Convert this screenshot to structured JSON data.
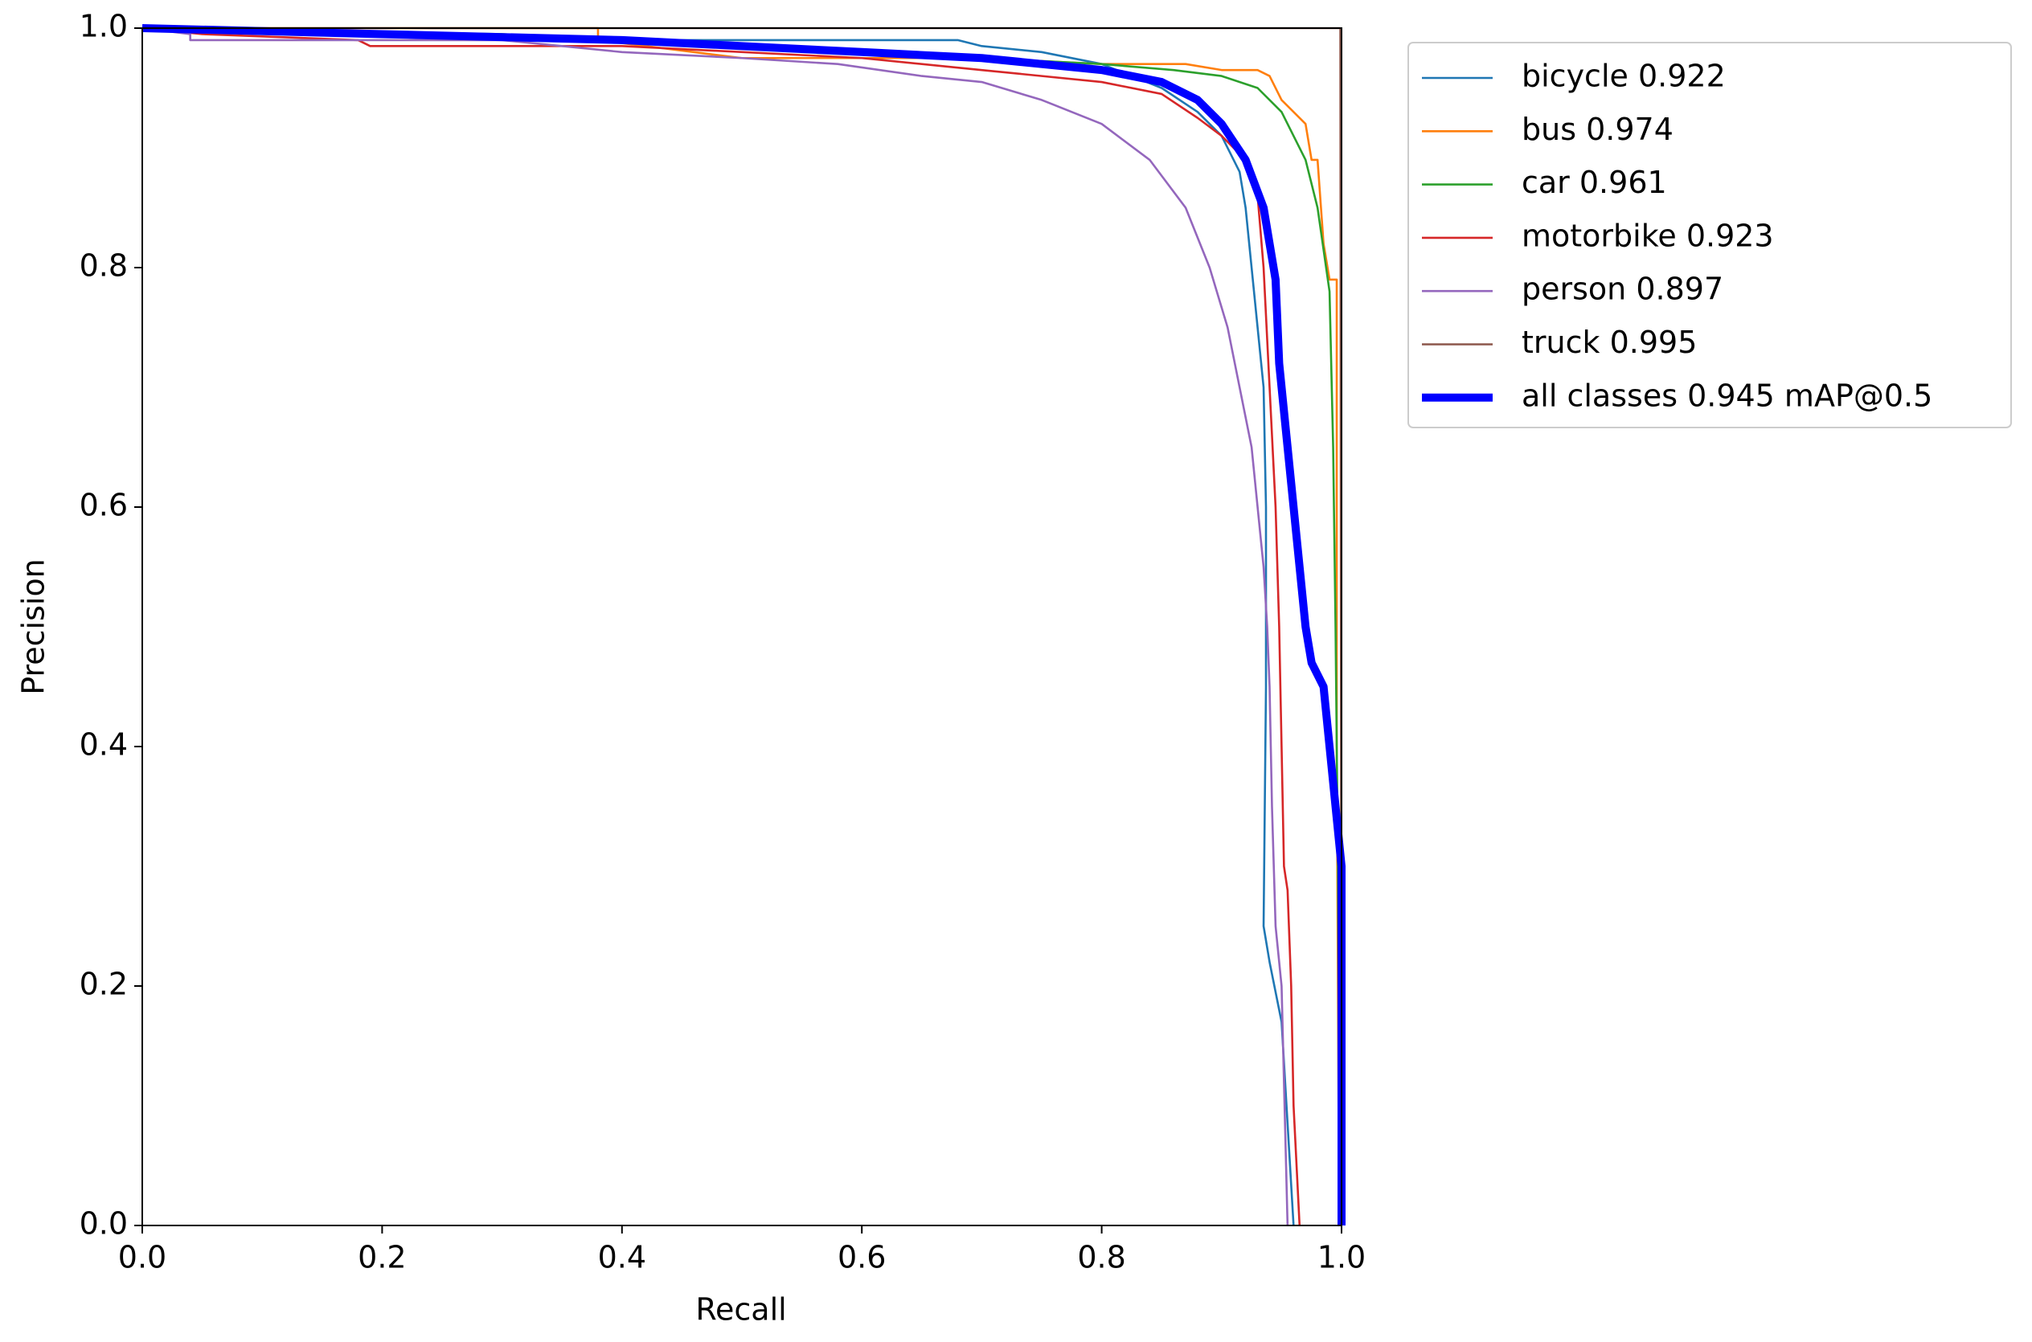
{
  "chart_data": {
    "type": "line",
    "xlabel": "Recall",
    "ylabel": "Precision",
    "xlim": [
      0,
      1
    ],
    "ylim": [
      0,
      1
    ],
    "xticks": [
      {
        "value": 0,
        "label": "0.0"
      },
      0.2,
      0.4,
      0.6,
      0.8,
      {
        "value": 1,
        "label": "1.0"
      }
    ],
    "yticks": [
      {
        "value": 0,
        "label": "0.0"
      },
      0.2,
      0.4,
      0.6,
      0.8,
      {
        "value": 1,
        "label": "1.0"
      }
    ],
    "grid": false,
    "legend": "outside upper right",
    "series": [
      {
        "name": "bicycle 0.922",
        "color": "#1f77b4",
        "width": "thin",
        "x": [
          0,
          0.2,
          0.38,
          0.5,
          0.68,
          0.7,
          0.75,
          0.8,
          0.85,
          0.88,
          0.9,
          0.915,
          0.92,
          0.925,
          0.93,
          0.935,
          0.937,
          0.937,
          0.935,
          0.94,
          0.95,
          0.96
        ],
        "values": [
          1,
          0.995,
          0.99,
          0.99,
          0.99,
          0.985,
          0.98,
          0.97,
          0.95,
          0.93,
          0.91,
          0.88,
          0.85,
          0.8,
          0.75,
          0.7,
          0.6,
          0.45,
          0.25,
          0.22,
          0.17,
          0
        ]
      },
      {
        "name": "bus 0.974",
        "color": "#ff7f0e",
        "width": "thin",
        "x": [
          0,
          0.38,
          0.38,
          0.5,
          0.6,
          0.7,
          0.8,
          0.87,
          0.9,
          0.93,
          0.94,
          0.95,
          0.97,
          0.975,
          0.98,
          0.985,
          0.99,
          0.996,
          0.996,
          0.998
        ],
        "values": [
          1,
          1,
          0.99,
          0.975,
          0.975,
          0.975,
          0.97,
          0.97,
          0.965,
          0.965,
          0.96,
          0.94,
          0.92,
          0.89,
          0.89,
          0.82,
          0.79,
          0.79,
          0.4,
          0
        ]
      },
      {
        "name": "car 0.961",
        "color": "#2ca02c",
        "width": "thin",
        "x": [
          0,
          0.3,
          0.5,
          0.7,
          0.8,
          0.86,
          0.9,
          0.93,
          0.95,
          0.97,
          0.98,
          0.99,
          0.993,
          0.995,
          0.997,
          0.998,
          1
        ],
        "values": [
          1,
          0.995,
          0.985,
          0.975,
          0.97,
          0.965,
          0.96,
          0.95,
          0.93,
          0.89,
          0.85,
          0.78,
          0.65,
          0.5,
          0.3,
          0.1,
          0
        ]
      },
      {
        "name": "motorbike 0.923",
        "color": "#d62728",
        "width": "thin",
        "x": [
          0,
          0.05,
          0.18,
          0.19,
          0.4,
          0.6,
          0.7,
          0.8,
          0.85,
          0.88,
          0.9,
          0.92,
          0.93,
          0.935,
          0.94,
          0.945,
          0.948,
          0.95,
          0.952,
          0.955,
          0.958,
          0.96,
          0.965
        ],
        "values": [
          1,
          0.995,
          0.99,
          0.985,
          0.985,
          0.975,
          0.965,
          0.955,
          0.945,
          0.925,
          0.91,
          0.89,
          0.86,
          0.8,
          0.7,
          0.6,
          0.5,
          0.4,
          0.3,
          0.28,
          0.2,
          0.1,
          0
        ]
      },
      {
        "name": "person 0.897",
        "color": "#9467bd",
        "width": "thin",
        "x": [
          0,
          0.04,
          0.04,
          0.3,
          0.4,
          0.5,
          0.58,
          0.65,
          0.7,
          0.75,
          0.8,
          0.84,
          0.87,
          0.89,
          0.905,
          0.915,
          0.925,
          0.93,
          0.935,
          0.938,
          0.94,
          0.942,
          0.945,
          0.95,
          0.955
        ],
        "values": [
          1,
          0.995,
          0.99,
          0.99,
          0.98,
          0.975,
          0.97,
          0.96,
          0.955,
          0.94,
          0.92,
          0.89,
          0.85,
          0.8,
          0.75,
          0.7,
          0.65,
          0.6,
          0.55,
          0.5,
          0.45,
          0.35,
          0.25,
          0.2,
          0
        ]
      },
      {
        "name": "truck 0.995",
        "color": "#8c564b",
        "width": "thin",
        "x": [
          0,
          0.999,
          1
        ],
        "values": [
          1,
          1,
          0
        ]
      },
      {
        "name": "all classes 0.945 mAP@0.5",
        "color": "#0000ff",
        "width": "thick",
        "x": [
          0,
          0.2,
          0.4,
          0.5,
          0.6,
          0.7,
          0.8,
          0.85,
          0.88,
          0.9,
          0.92,
          0.935,
          0.945,
          0.948,
          0.955,
          0.96,
          0.965,
          0.97,
          0.975,
          0.985,
          0.99,
          0.995,
          1,
          1,
          1,
          1
        ],
        "values": [
          1,
          0.995,
          0.99,
          0.985,
          0.98,
          0.975,
          0.965,
          0.955,
          0.94,
          0.92,
          0.89,
          0.85,
          0.79,
          0.72,
          0.65,
          0.6,
          0.55,
          0.5,
          0.47,
          0.45,
          0.4,
          0.35,
          0.3,
          0.18,
          0.17,
          0
        ]
      }
    ]
  }
}
